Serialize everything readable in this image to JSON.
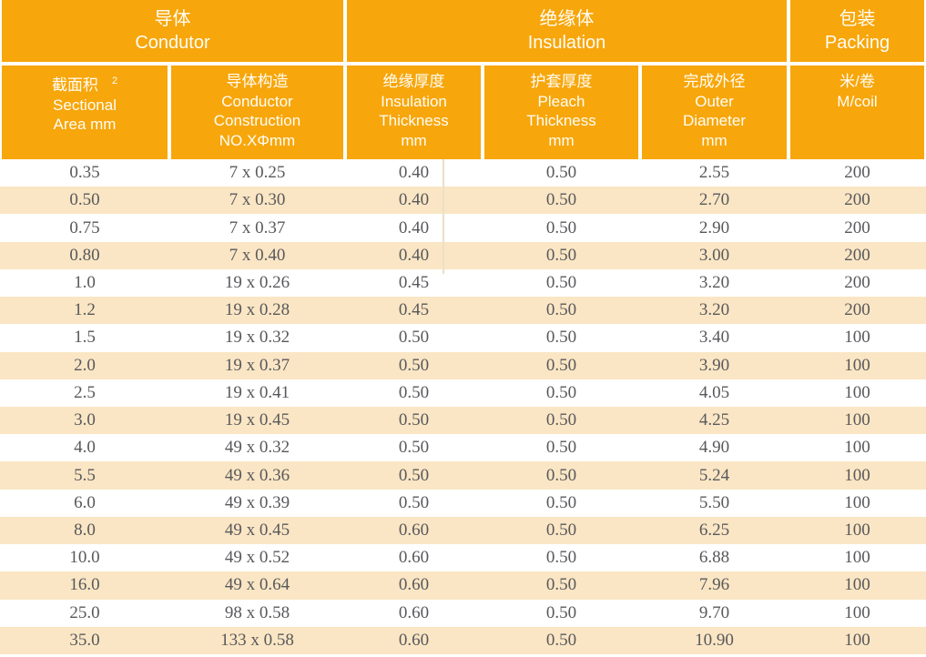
{
  "colors": {
    "header_orange": "#F7A60B",
    "stripe_beige": "#FAE6C4",
    "cell_text": "#58585C",
    "header_text": "#FFFDF6"
  },
  "table": {
    "groups": [
      {
        "zh": "导体",
        "en": "Condutor"
      },
      {
        "zh": "绝缘体",
        "en": "Insulation"
      },
      {
        "zh": "包装",
        "en": "Packing"
      }
    ],
    "columns": [
      {
        "lines": [
          "截面积",
          "Sectional",
          "Area mm"
        ],
        "sup": "2"
      },
      {
        "lines": [
          "导体构造",
          "Conductor",
          "Construction",
          "NO.XΦmm"
        ]
      },
      {
        "lines": [
          "绝缘厚度",
          "Insulation",
          "Thickness",
          "mm"
        ]
      },
      {
        "lines": [
          "护套厚度",
          "Pleach",
          "Thickness",
          "mm"
        ]
      },
      {
        "lines": [
          "完成外径",
          "Outer",
          "Diameter",
          "mm"
        ]
      },
      {
        "lines": [
          "米/卷",
          "M/coil"
        ]
      }
    ],
    "rows": [
      [
        "0.35",
        "7 x 0.25",
        "0.40",
        "0.50",
        "2.55",
        "200"
      ],
      [
        "0.50",
        "7 x 0.30",
        "0.40",
        "0.50",
        "2.70",
        "200"
      ],
      [
        "0.75",
        "7 x 0.37",
        "0.40",
        "0.50",
        "2.90",
        "200"
      ],
      [
        "0.80",
        "7 x 0.40",
        "0.40",
        "0.50",
        "3.00",
        "200"
      ],
      [
        "1.0",
        "19 x 0.26",
        "0.45",
        "0.50",
        "3.20",
        "200"
      ],
      [
        "1.2",
        "19 x 0.28",
        "0.45",
        "0.50",
        "3.20",
        "200"
      ],
      [
        "1.5",
        "19 x 0.32",
        "0.50",
        "0.50",
        "3.40",
        "100"
      ],
      [
        "2.0",
        "19 x 0.37",
        "0.50",
        "0.50",
        "3.90",
        "100"
      ],
      [
        "2.5",
        "19 x 0.41",
        "0.50",
        "0.50",
        "4.05",
        "100"
      ],
      [
        "3.0",
        "19 x 0.45",
        "0.50",
        "0.50",
        "4.25",
        "100"
      ],
      [
        "4.0",
        "49 x 0.32",
        "0.50",
        "0.50",
        "4.90",
        "100"
      ],
      [
        "5.5",
        "49 x 0.36",
        "0.50",
        "0.50",
        "5.24",
        "100"
      ],
      [
        "6.0",
        "49 x 0.39",
        "0.50",
        "0.50",
        "5.50",
        "100"
      ],
      [
        "8.0",
        "49 x 0.45",
        "0.60",
        "0.50",
        "6.25",
        "100"
      ],
      [
        "10.0",
        "49 x 0.52",
        "0.60",
        "0.50",
        "6.88",
        "100"
      ],
      [
        "16.0",
        "49 x 0.64",
        "0.60",
        "0.50",
        "7.96",
        "100"
      ],
      [
        "25.0",
        "98 x 0.58",
        "0.60",
        "0.50",
        "9.70",
        "100"
      ],
      [
        "35.0",
        "133 x 0.58",
        "0.60",
        "0.50",
        "10.90",
        "100"
      ]
    ]
  }
}
